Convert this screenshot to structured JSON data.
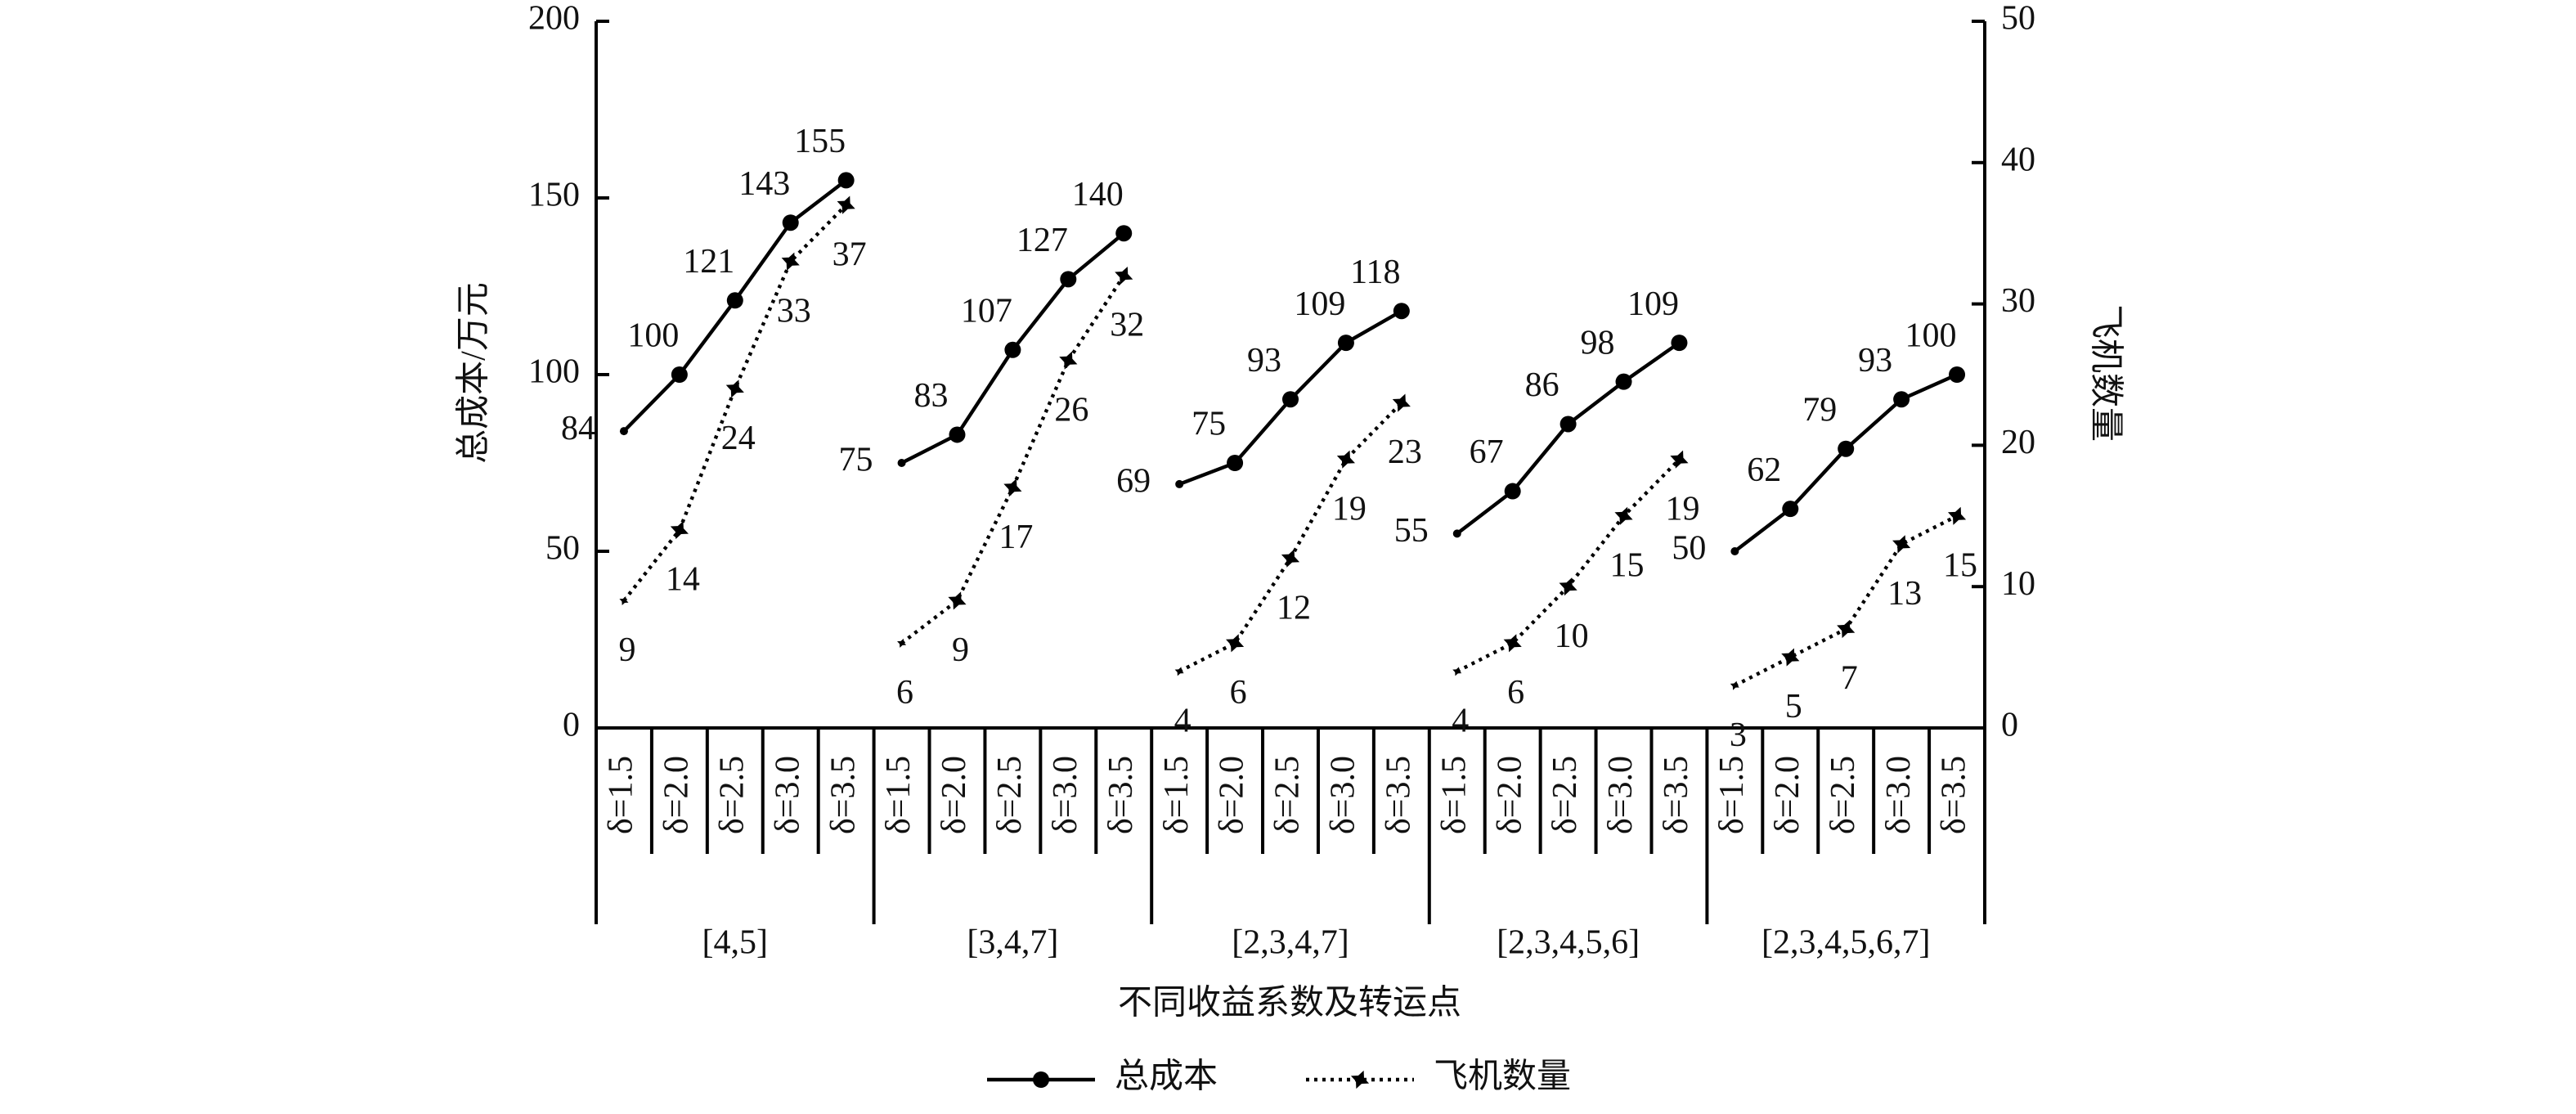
{
  "chart_data": {
    "type": "line",
    "x_label": "不同收益系数及转运点",
    "y_label": "总成本/万元",
    "y2_label": "飞机数量",
    "categories": [
      "δ=1.5",
      "δ=2.0",
      "δ=2.5",
      "δ=3.0",
      "δ=3.5",
      "δ=1.5",
      "δ=2.0",
      "δ=2.5",
      "δ=3.0",
      "δ=3.5",
      "δ=1.5",
      "δ=2.0",
      "δ=2.5",
      "δ=3.0",
      "δ=3.5",
      "δ=1.5",
      "δ=2.0",
      "δ=2.5",
      "δ=3.0",
      "δ=3.5",
      "δ=1.5",
      "δ=2.0",
      "δ=2.5",
      "δ=3.0",
      "δ=3.5"
    ],
    "groups": [
      "[4,5]",
      "[3,4,7]",
      "[2,3,4,7]",
      "[2,3,4,5,6]",
      "[2,3,4,5,6,7]"
    ],
    "series": [
      {
        "name": "总成本",
        "color": "#000000",
        "line_style": "solid",
        "marker": "circle",
        "values": [
          84,
          100,
          121,
          143,
          155,
          75,
          83,
          107,
          127,
          140,
          69,
          75,
          93,
          109,
          118,
          55,
          67,
          86,
          98,
          109,
          50,
          62,
          79,
          93,
          100
        ]
      },
      {
        "name": "飞机数量",
        "color": "#000000",
        "line_style": "dotted",
        "marker": "star",
        "axis": "y2",
        "values": [
          9,
          14,
          24,
          33,
          37,
          6,
          9,
          17,
          26,
          32,
          4,
          6,
          12,
          19,
          23,
          4,
          6,
          10,
          15,
          19,
          3,
          5,
          7,
          13,
          15
        ]
      }
    ],
    "ylim": [
      0,
      200
    ],
    "yticks": [
      0,
      50,
      100,
      150,
      200
    ],
    "y2lim": [
      0,
      50
    ],
    "y2ticks": [
      0,
      10,
      20,
      30,
      40,
      50
    ]
  }
}
